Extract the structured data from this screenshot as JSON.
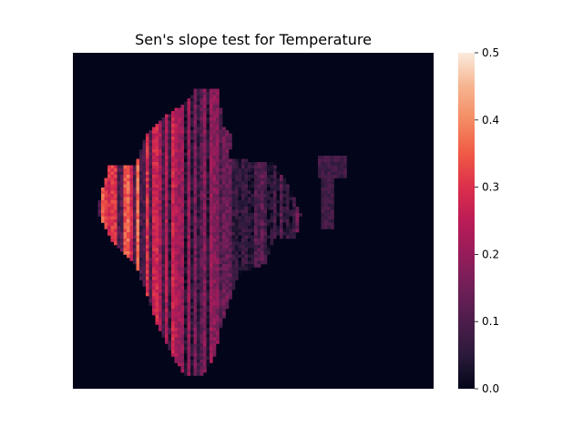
{
  "chart_data": {
    "type": "heatmap",
    "title": "Sen's slope test for Temperature",
    "xlabel": "",
    "ylabel": "",
    "grid": false,
    "colormap": "rocket",
    "colorbar": {
      "range": [
        0.0,
        0.5
      ],
      "ticks": [
        0.0,
        0.1,
        0.2,
        0.3,
        0.4,
        0.5
      ],
      "tick_labels": [
        "0.0",
        "0.1",
        "0.2",
        "0.3",
        "0.4",
        "0.5"
      ],
      "placement": "right"
    },
    "background_value": 0.0
  }
}
